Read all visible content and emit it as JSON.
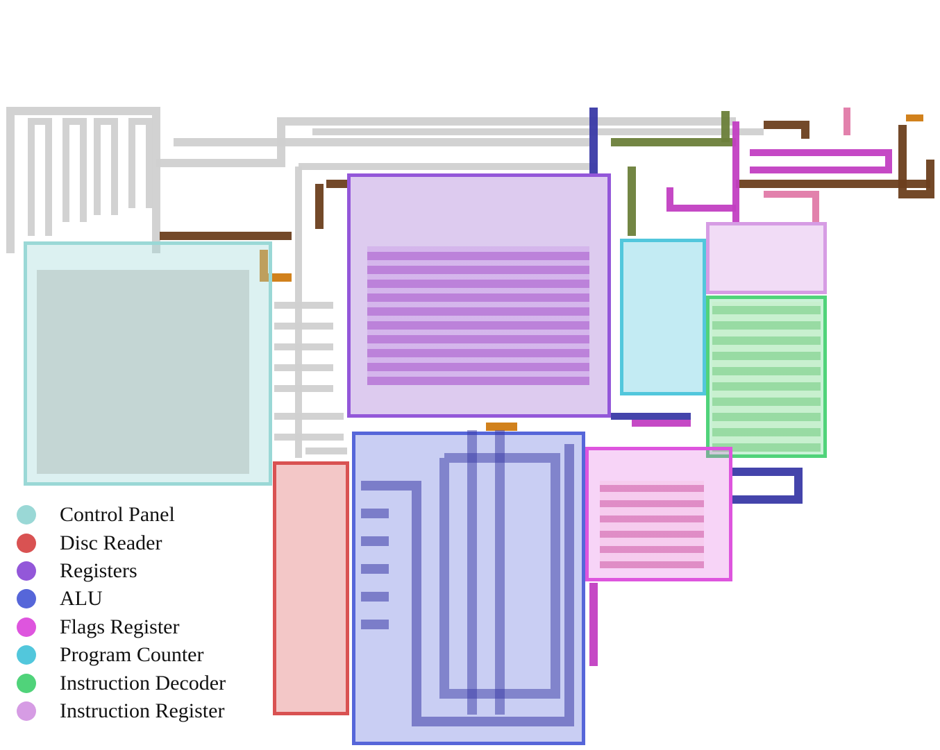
{
  "legend": [
    {
      "label": "Control Panel",
      "color": "#9ad8d6"
    },
    {
      "label": "Disc Reader",
      "color": "#d95252"
    },
    {
      "label": "Registers",
      "color": "#9357d9"
    },
    {
      "label": "ALU",
      "color": "#5666d9"
    },
    {
      "label": "Flags Register",
      "color": "#de55de"
    },
    {
      "label": "Program Counter",
      "color": "#52c7dc"
    },
    {
      "label": "Instruction Decoder",
      "color": "#50d37a"
    },
    {
      "label": "Instruction Register",
      "color": "#d69ce4"
    }
  ],
  "colors": {
    "wire_light": "#d0d0d0",
    "wire_brown": "#6b3f1d",
    "wire_orange": "#cf7a10",
    "wire_olive": "#6b7f3a",
    "wire_magenta": "#c23fc2",
    "wire_navy": "#3a3aa6",
    "wire_pink": "#e07aa8"
  }
}
